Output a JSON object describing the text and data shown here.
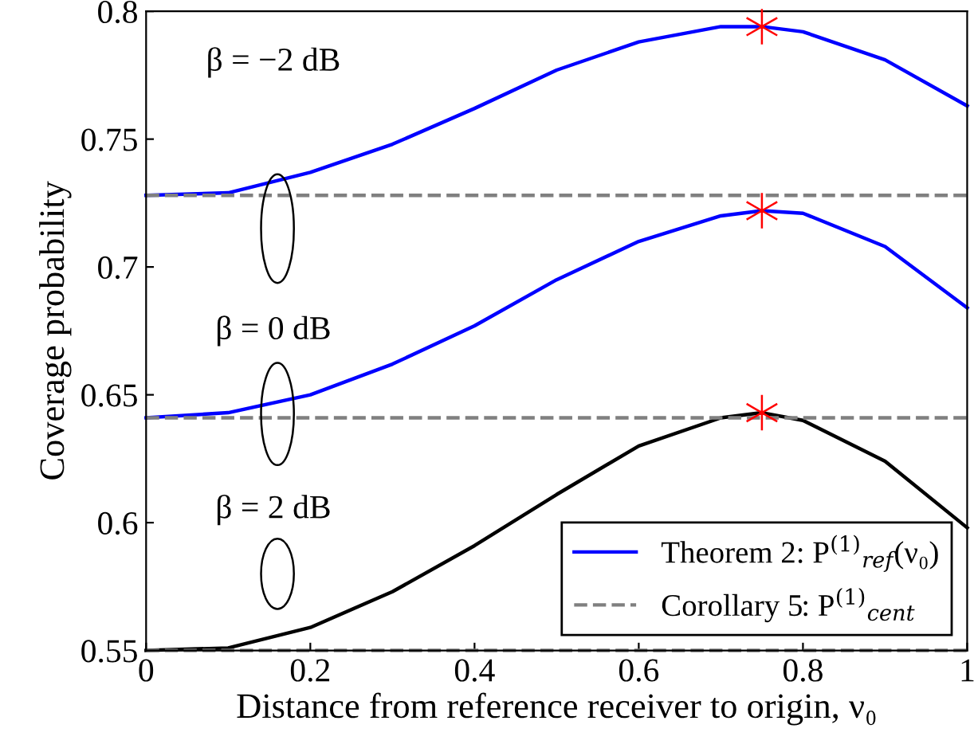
{
  "chart_data": {
    "type": "line",
    "xlabel": "Distance from reference receiver to origin, ν₀",
    "ylabel": "Coverage probability",
    "x": [
      0,
      0.1,
      0.2,
      0.3,
      0.4,
      0.5,
      0.6,
      0.7,
      0.75,
      0.8,
      0.9,
      1
    ],
    "series": [
      {
        "name": "Theorem 2: P$^{(1)}$$_{ref}$(ν₀)",
        "color": "#0000ff",
        "values": [
          0.728,
          0.729,
          0.737,
          0.748,
          0.762,
          0.777,
          0.788,
          0.794,
          0.794,
          0.792,
          0.781,
          0.763
        ]
      },
      {
        "color": "#0000ff",
        "values": [
          0.641,
          0.643,
          0.65,
          0.662,
          0.677,
          0.695,
          0.71,
          0.72,
          0.722,
          0.721,
          0.708,
          0.684
        ]
      },
      {
        "color": "#000000",
        "values": [
          0.55,
          0.551,
          0.559,
          0.573,
          0.591,
          0.611,
          0.63,
          0.641,
          0.643,
          0.64,
          0.624,
          0.598
        ]
      },
      {
        "name": "Corollary 5: P$^{(1)}$$_{cent}$",
        "color": "#808080",
        "line_style": "dashed",
        "x": [
          0,
          1
        ],
        "values": [
          0.728,
          0.728
        ]
      },
      {
        "color": "#808080",
        "line_style": "dashed",
        "x": [
          0,
          1
        ],
        "values": [
          0.641,
          0.641
        ]
      },
      {
        "color": "#808080",
        "line_style": "dashed",
        "x": [
          0,
          1
        ],
        "values": [
          0.55,
          0.55
        ]
      },
      {
        "type": "scatter",
        "color": "#ff0000",
        "marker": "cross",
        "x": [
          0.75,
          0.75,
          0.75
        ],
        "values": [
          0.794,
          0.722,
          0.643
        ]
      }
    ],
    "annotations": [
      "β = −2 dB",
      "β = 0 dB",
      "β = 2 dB"
    ],
    "xlim": [
      0,
      1
    ],
    "ylim": [
      0.55,
      0.8
    ],
    "xticks": [
      0,
      0.2,
      0.4,
      0.6,
      0.8,
      1
    ],
    "yticks": [
      0.55,
      0.6,
      0.65,
      0.7,
      0.75,
      0.8
    ],
    "grid": false,
    "legend": "bottom right"
  }
}
